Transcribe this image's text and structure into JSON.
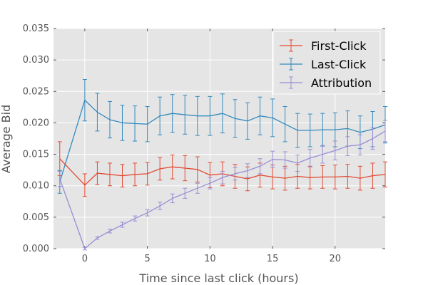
{
  "chart_data": {
    "type": "line",
    "xlabel": "Time since last click (hours)",
    "ylabel": "Average Bid",
    "xlim": [
      -2.5,
      24
    ],
    "ylim": [
      0,
      0.035
    ],
    "xticks": [
      "0",
      "5",
      "10",
      "15",
      "20"
    ],
    "xtick_values": [
      0,
      5,
      10,
      15,
      20
    ],
    "yticks": [
      "0.000",
      "0.005",
      "0.010",
      "0.015",
      "0.020",
      "0.025",
      "0.030",
      "0.035"
    ],
    "ytick_values": [
      0,
      0.005,
      0.01,
      0.015,
      0.02,
      0.025,
      0.03,
      0.035
    ],
    "grid": true,
    "legend_position": "top-right",
    "background": "#e5e5e5",
    "x": [
      -2,
      0,
      1,
      2,
      3,
      4,
      5,
      6,
      7,
      8,
      9,
      10,
      11,
      12,
      13,
      14,
      15,
      16,
      17,
      18,
      19,
      20,
      21,
      22,
      23,
      24
    ],
    "series": [
      {
        "name": "First-Click",
        "color": "#e24a33",
        "values": [
          0.0143,
          0.0101,
          0.012,
          0.0118,
          0.0116,
          0.0118,
          0.0119,
          0.0127,
          0.013,
          0.0128,
          0.0126,
          0.0117,
          0.0119,
          0.0115,
          0.0111,
          0.0117,
          0.0114,
          0.0112,
          0.0115,
          0.0113,
          0.0114,
          0.0114,
          0.0115,
          0.0112,
          0.0116,
          0.0118
        ],
        "errors": [
          0.0027,
          0.0018,
          0.0018,
          0.0018,
          0.0018,
          0.0018,
          0.0018,
          0.0018,
          0.0019,
          0.002,
          0.002,
          0.002,
          0.0019,
          0.0019,
          0.0019,
          0.0019,
          0.0019,
          0.0019,
          0.0019,
          0.0018,
          0.0018,
          0.0019,
          0.0019,
          0.0019,
          0.002,
          0.002
        ]
      },
      {
        "name": "Last-Click",
        "color": "#348abd",
        "values": [
          0.0106,
          0.0236,
          0.0217,
          0.0205,
          0.02,
          0.0199,
          0.0198,
          0.0211,
          0.0215,
          0.0213,
          0.0211,
          0.0211,
          0.0215,
          0.0207,
          0.0203,
          0.0211,
          0.0208,
          0.0198,
          0.0188,
          0.0188,
          0.0189,
          0.0189,
          0.0191,
          0.0185,
          0.019,
          0.0197
        ],
        "errors": [
          0.0018,
          0.0033,
          0.003,
          0.0029,
          0.0028,
          0.0028,
          0.0028,
          0.003,
          0.003,
          0.0031,
          0.0031,
          0.0031,
          0.0031,
          0.003,
          0.0029,
          0.003,
          0.003,
          0.0028,
          0.0027,
          0.0026,
          0.0026,
          0.0027,
          0.0028,
          0.0026,
          0.0028,
          0.0029
        ]
      },
      {
        "name": "Attribution",
        "color": "#988ed5",
        "values": [
          0.0111,
          0.0,
          0.0017,
          0.0028,
          0.0038,
          0.0048,
          0.0057,
          0.0068,
          0.008,
          0.0088,
          0.0096,
          0.0104,
          0.0113,
          0.0119,
          0.0124,
          0.0131,
          0.0142,
          0.0141,
          0.0136,
          0.0144,
          0.015,
          0.0156,
          0.0163,
          0.0165,
          0.0175,
          0.0187
        ],
        "errors": [
          0.0012,
          0.0002,
          0.0002,
          0.0003,
          0.0004,
          0.0004,
          0.0005,
          0.0006,
          0.0007,
          0.0008,
          0.0008,
          0.0009,
          0.001,
          0.001,
          0.0011,
          0.0012,
          0.0013,
          0.0013,
          0.0013,
          0.0014,
          0.0014,
          0.0015,
          0.0015,
          0.0016,
          0.0017,
          0.0017
        ]
      }
    ]
  }
}
